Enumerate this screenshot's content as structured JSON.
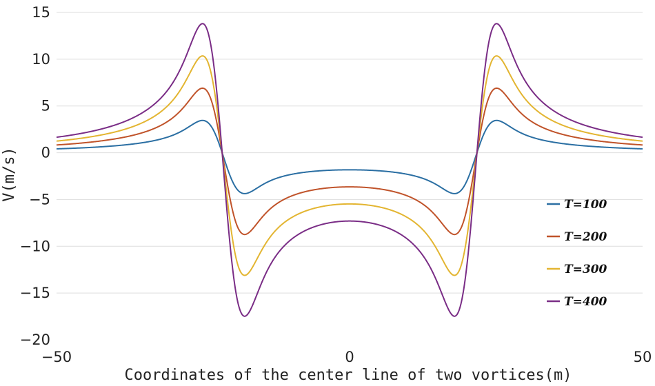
{
  "chart_data": {
    "type": "line",
    "title": "",
    "xlabel": "Coordinates of the center line of two vortices(m)",
    "ylabel": "V(m/s)",
    "xlim": [
      -50,
      50
    ],
    "ylim": [
      -20,
      15
    ],
    "x_ticks": [
      "−50",
      "0",
      "50"
    ],
    "y_ticks": [
      "15",
      "10",
      "5",
      "0",
      "−5",
      "−10",
      "−15",
      "−20"
    ],
    "grid": "horizontal",
    "legend_position": "right",
    "series": [
      {
        "name": "T=100",
        "color": "#2b6fa3",
        "peak": 3.45,
        "trough": -4.15,
        "center": -1.35
      },
      {
        "name": "T=200",
        "color": "#c0532a",
        "peak": 6.9,
        "trough": -8.3,
        "center": -2.7
      },
      {
        "name": "T=300",
        "color": "#e3b531",
        "peak": 10.35,
        "trough": -12.45,
        "center": -4.05
      },
      {
        "name": "T=400",
        "color": "#7a2d86",
        "peak": 13.8,
        "trough": -16.6,
        "center": -5.4
      }
    ]
  }
}
